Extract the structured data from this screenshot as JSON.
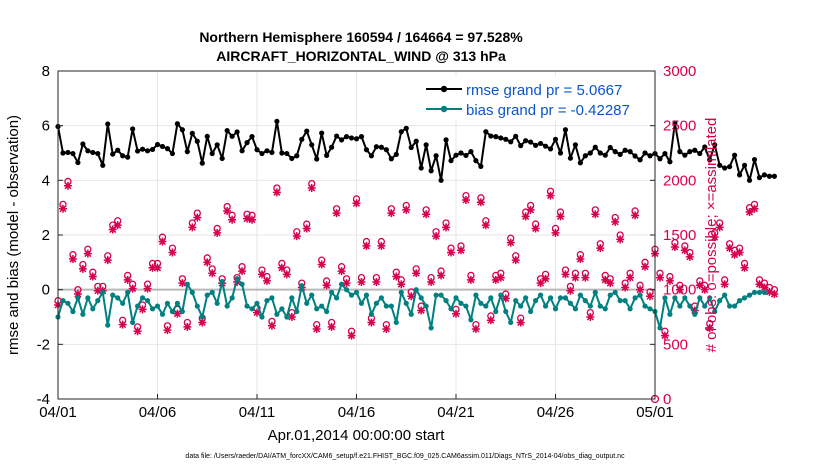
{
  "chart_data": {
    "type": "line",
    "title": [
      "Northern Hemisphere 160594 / 164664 = 97.528%",
      "AIRCRAFT_HORIZONTAL_WIND @ 313 hPa"
    ],
    "xlabel": "Apr.01,2014 00:00:00 start",
    "ylabel_left": "rmse and bias (model - observation)",
    "ylabel_right": "# of obs: o=possible; ×=assimilated",
    "footnote": "data file: /Users/raeder/DAI/ATM_forcXX/CAM6_setup/f.e21.FHIST_BGC.f09_025.CAM6assim.011/Diags_NTrS_2014-04/obs_diag_output.nc",
    "xlim": [
      0,
      30
    ],
    "ylim_left": [
      -4,
      8
    ],
    "ylim_right": [
      0,
      3000
    ],
    "x_ticks": [
      0,
      5,
      10,
      15,
      20,
      25,
      30
    ],
    "x_tick_labels": [
      "04/01",
      "04/06",
      "04/11",
      "04/16",
      "04/21",
      "04/26",
      "05/01"
    ],
    "y_ticks_left": [
      -4,
      -2,
      0,
      2,
      4,
      6,
      8
    ],
    "y_ticks_right": [
      0,
      500,
      1000,
      1500,
      2000,
      2500,
      3000
    ],
    "colors": {
      "rmse": "#000000",
      "bias": "#008080",
      "obs": "#d6004f",
      "zero_line": "#b8b8b8"
    },
    "legend": [
      {
        "label": "rmse grand pr = 5.0667",
        "series": "rmse"
      },
      {
        "label": "bias grand pr = -0.42287",
        "series": "bias"
      }
    ],
    "series": [
      {
        "name": "rmse",
        "axis": "left",
        "start": 0,
        "step": 0.25,
        "values": [
          5.97,
          5.0,
          5.02,
          4.98,
          4.65,
          5.33,
          5.08,
          5.02,
          4.98,
          4.55,
          6.06,
          4.96,
          5.1,
          4.9,
          4.85,
          5.88,
          5.07,
          5.14,
          5.08,
          5.13,
          5.31,
          5.24,
          5.16,
          4.98,
          6.07,
          5.85,
          5.05,
          5.72,
          5.43,
          4.63,
          5.61,
          4.98,
          5.3,
          4.8,
          5.82,
          5.61,
          5.77,
          5.08,
          5.38,
          5.6,
          5.12,
          4.98,
          5.08,
          5.02,
          6.16,
          5.0,
          4.98,
          4.8,
          4.9,
          5.5,
          5.8,
          5.3,
          4.78,
          5.73,
          4.91,
          5.21,
          5.62,
          5.48,
          5.6,
          5.55,
          5.52,
          5.6,
          5.12,
          4.9,
          5.23,
          5.21,
          5.12,
          4.79,
          4.95,
          5.78,
          5.9,
          5.2,
          5.43,
          4.45,
          5.3,
          4.35,
          4.9,
          4.0,
          5.48,
          4.72,
          4.92,
          5.0,
          4.91,
          5.05,
          4.72,
          4.51,
          5.78,
          5.62,
          5.6,
          5.55,
          5.5,
          5.41,
          5.61,
          5.27,
          5.45,
          5.4,
          5.28,
          5.35,
          5.25,
          5.15,
          5.5,
          5.0,
          5.85,
          4.81,
          5.3,
          4.64,
          4.9,
          5.0,
          5.21,
          5.0,
          4.92,
          5.2,
          5.05,
          4.95,
          5.1,
          5.05,
          4.89,
          4.75,
          5.0,
          4.9,
          4.98,
          4.79,
          4.98,
          4.68,
          6.1,
          5.05,
          4.92,
          5.05,
          5.1,
          4.98,
          5.22,
          4.75,
          5.3,
          4.55,
          4.45,
          4.5,
          4.92,
          4.2,
          4.55,
          4.0,
          4.76,
          4.1,
          4.2,
          4.15,
          4.15
        ]
      },
      {
        "name": "bias",
        "axis": "left",
        "start": 0,
        "step": 0.25,
        "values": [
          -1.0,
          -0.4,
          -0.5,
          -0.8,
          -0.3,
          -0.9,
          -0.3,
          -0.7,
          -0.4,
          -0.1,
          -1.3,
          -0.2,
          -0.3,
          -0.5,
          -0.1,
          -1.2,
          -0.6,
          -0.3,
          -0.4,
          -0.7,
          -0.6,
          -0.9,
          -0.5,
          -0.8,
          -0.5,
          -0.8,
          0.2,
          -0.1,
          -0.6,
          -1.0,
          -0.2,
          -0.1,
          -0.5,
          0.3,
          -0.6,
          -0.3,
          0.4,
          0.2,
          -0.6,
          -0.7,
          -0.5,
          -1.0,
          -0.4,
          -0.3,
          -0.9,
          -0.7,
          -1.0,
          -0.3,
          -0.8,
          0.15,
          -0.5,
          -0.2,
          -0.7,
          -0.6,
          -0.8,
          -0.1,
          -0.3,
          0.2,
          0.0,
          -0.2,
          -0.1,
          -0.5,
          -0.2,
          -0.9,
          -0.5,
          -0.3,
          -0.6,
          -0.6,
          -1.2,
          -0.1,
          -0.5,
          -0.9,
          0.0,
          -0.3,
          -0.6,
          -1.4,
          -0.2,
          -0.2,
          -0.4,
          -0.7,
          -0.3,
          -0.5,
          -0.6,
          -1.1,
          -0.2,
          -0.5,
          -0.6,
          -0.3,
          -0.8,
          -0.2,
          -0.8,
          -1.2,
          -0.4,
          -0.6,
          -0.3,
          -0.8,
          -0.4,
          -0.2,
          -0.6,
          -0.3,
          -0.7,
          -0.3,
          -0.3,
          -0.5,
          -0.7,
          -0.2,
          -0.4,
          -0.6,
          -0.1,
          -0.6,
          -0.7,
          -0.2,
          -0.1,
          -0.4,
          -0.4,
          -0.7,
          -0.3,
          -0.2,
          -0.6,
          -0.7,
          -0.8,
          -1.4,
          -0.3,
          -0.9,
          -0.3,
          -0.6,
          -0.3,
          -0.6,
          -0.9,
          -0.3,
          -0.6,
          -0.3,
          -0.8,
          -0.4,
          -0.2,
          -0.6,
          -0.6,
          -0.4,
          -0.3,
          -0.2,
          -0.1,
          -0.1,
          -0.1
        ]
      },
      {
        "name": "obs_possible",
        "axis": "right",
        "marker": "o",
        "start": 0,
        "step": 0.25,
        "values": [
          900,
          1780,
          1990,
          1320,
          1000,
          1230,
          1370,
          1160,
          1030,
          1030,
          1310,
          1590,
          1630,
          720,
          1130,
          1050,
          660,
          860,
          1050,
          1240,
          1240,
          1480,
          670,
          1380,
          820,
          1100,
          700,
          1610,
          1700,
          740,
          1290,
          1190,
          1560,
          1100,
          1760,
          1680,
          1110,
          1210,
          1690,
          1680,
          830,
          1180,
          1120,
          710,
          1930,
          1240,
          1180,
          790,
          1530,
          1060,
          1600,
          1970,
          680,
          1270,
          1080,
          700,
          1740,
          1210,
          1100,
          620,
          1830,
          1110,
          1440,
          740,
          1110,
          1440,
          680,
          1740,
          1160,
          1090,
          1770,
          980,
          1190,
          850,
          1730,
          1110,
          1530,
          1170,
          1610,
          1380,
          820,
          1400,
          1860,
          1130,
          680,
          1840,
          1630,
          760,
          1130,
          1150,
          960,
          1470,
          1310,
          740,
          1710,
          1770,
          1600,
          1100,
          1140,
          1900,
          1560,
          1710,
          1180,
          1030,
          1150,
          1320,
          1150,
          790,
          1730,
          1420,
          1130,
          1100,
          1660,
          1500,
          1060,
          1150,
          1720,
          1040,
          1250,
          980,
          1370,
          1150,
          620,
          1120,
          1430,
          1040,
          1400,
          1340,
          850,
          1080,
          1040,
          690,
          1520,
          1610,
          1090,
          1420,
          1360,
          1380,
          1240,
          1750,
          1780,
          1090,
          1060,
          1020,
          1000
        ]
      },
      {
        "name": "obs_assimilated",
        "axis": "right",
        "marker": "x",
        "start": 0,
        "step": 0.25,
        "values": [
          860,
          1740,
          1950,
          1280,
          960,
          1190,
          1330,
          1120,
          990,
          990,
          1270,
          1550,
          1590,
          680,
          1090,
          1010,
          620,
          820,
          1010,
          1200,
          1200,
          1440,
          630,
          1340,
          780,
          1060,
          660,
          1570,
          1660,
          700,
          1250,
          1150,
          1520,
          1060,
          1720,
          1640,
          1070,
          1170,
          1650,
          1640,
          790,
          1140,
          1080,
          670,
          1890,
          1200,
          1140,
          750,
          1490,
          1020,
          1560,
          1930,
          640,
          1230,
          1040,
          660,
          1700,
          1170,
          1060,
          580,
          1790,
          1070,
          1400,
          700,
          1070,
          1400,
          640,
          1700,
          1120,
          1050,
          1730,
          940,
          1150,
          810,
          1690,
          1070,
          1490,
          1130,
          1570,
          1340,
          780,
          1360,
          1820,
          1090,
          640,
          1800,
          1590,
          720,
          1090,
          1110,
          920,
          1430,
          1270,
          700,
          1670,
          1730,
          1560,
          1060,
          1100,
          1860,
          1520,
          1670,
          1140,
          990,
          1110,
          1280,
          1110,
          750,
          1690,
          1380,
          1090,
          1060,
          1620,
          1460,
          1020,
          1110,
          1680,
          1000,
          1210,
          940,
          1330,
          1110,
          580,
          1080,
          1390,
          1000,
          1360,
          1300,
          810,
          1040,
          1000,
          650,
          1480,
          1570,
          1050,
          1380,
          1320,
          1340,
          1200,
          1710,
          1740,
          1050,
          1020,
          980,
          960
        ]
      }
    ]
  }
}
